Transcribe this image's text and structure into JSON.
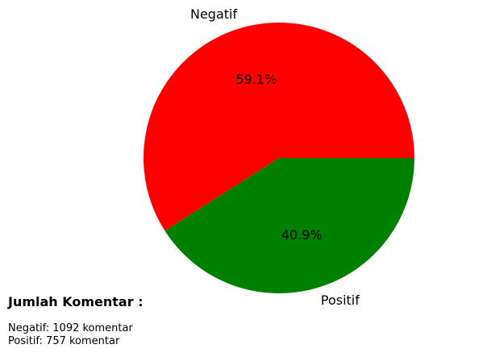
{
  "chart_data": {
    "type": "pie",
    "title": "",
    "categories": [
      "Negatif",
      "Positif"
    ],
    "values": [
      1092,
      757
    ],
    "percent_labels": [
      "59.1%",
      "40.9%"
    ],
    "colors": [
      "#ff0000",
      "#008000"
    ],
    "start_angle_deg": 0,
    "direction": "counterclockwise"
  },
  "summary": {
    "title": "Jumlah Komentar :",
    "lines": [
      "Negatif: 1092 komentar",
      "Positif: 757 komentar"
    ]
  }
}
